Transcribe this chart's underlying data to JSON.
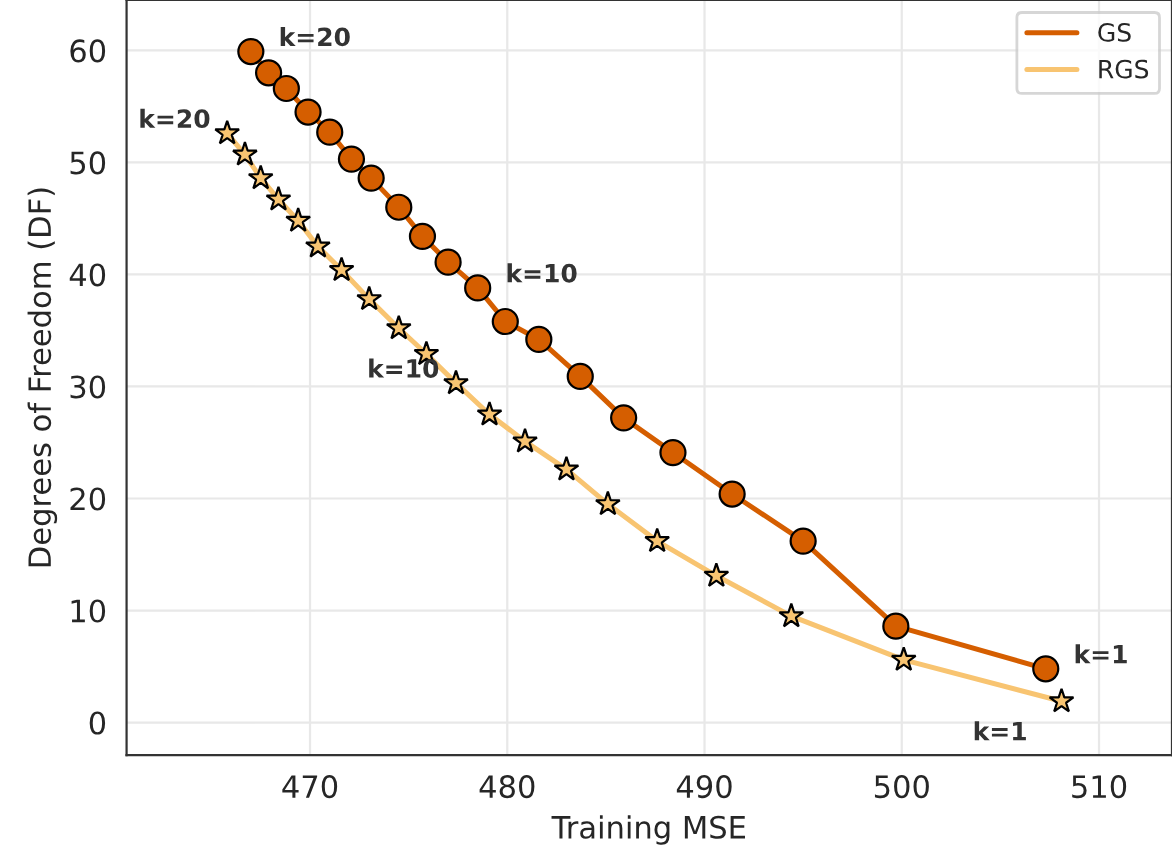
{
  "chart_data": {
    "type": "line",
    "xlabel": "Training MSE",
    "ylabel": "Degrees of Freedom (DF)",
    "xlim": [
      460.7,
      513.7
    ],
    "xticks": [
      470,
      480,
      490,
      500,
      510
    ],
    "ylim": [
      -2.9,
      64.5
    ],
    "yticks": [
      0,
      10,
      20,
      30,
      40,
      50,
      60
    ],
    "grid": true,
    "legend": "top right",
    "line_style": "solid",
    "series": [
      {
        "name": "GS",
        "color": "#d55e00",
        "marker": "circle",
        "x": [
          467.0,
          467.9,
          468.8,
          469.9,
          471.0,
          472.1,
          473.1,
          474.5,
          475.7,
          477.0,
          478.5,
          479.9,
          481.6,
          483.7,
          485.9,
          488.4,
          491.4,
          495.0,
          499.7,
          507.3
        ],
        "values": [
          59.9,
          58.0,
          56.6,
          54.5,
          52.7,
          50.3,
          48.6,
          46.0,
          43.4,
          41.1,
          38.8,
          35.8,
          34.2,
          30.9,
          27.2,
          24.1,
          20.4,
          16.2,
          8.6,
          4.8
        ]
      },
      {
        "name": "RGS",
        "color": "#f8c471",
        "marker": "star",
        "x": [
          465.8,
          466.7,
          467.5,
          468.4,
          469.4,
          470.4,
          471.6,
          473.0,
          474.5,
          475.9,
          477.4,
          479.1,
          480.9,
          483.0,
          485.1,
          487.6,
          490.6,
          494.4,
          500.1,
          508.1
        ],
        "values": [
          52.6,
          50.7,
          48.6,
          46.7,
          44.8,
          42.5,
          40.4,
          37.8,
          35.2,
          32.9,
          30.3,
          27.5,
          25.1,
          22.6,
          19.5,
          16.2,
          13.1,
          9.5,
          5.6,
          1.9
        ]
      }
    ],
    "annotations": [
      {
        "text": "k=20",
        "x": 467.0,
        "y": 59.9
      },
      {
        "text": "k=10",
        "x": 478.5,
        "y": 38.8
      },
      {
        "text": "k=1",
        "x": 507.3,
        "y": 4.8
      },
      {
        "text": "k=20",
        "x": 465.8,
        "y": 52.6
      },
      {
        "text": "k=10",
        "x": 477.4,
        "y": 30.3
      },
      {
        "text": "k=1",
        "x": 508.1,
        "y": 1.9
      }
    ]
  }
}
